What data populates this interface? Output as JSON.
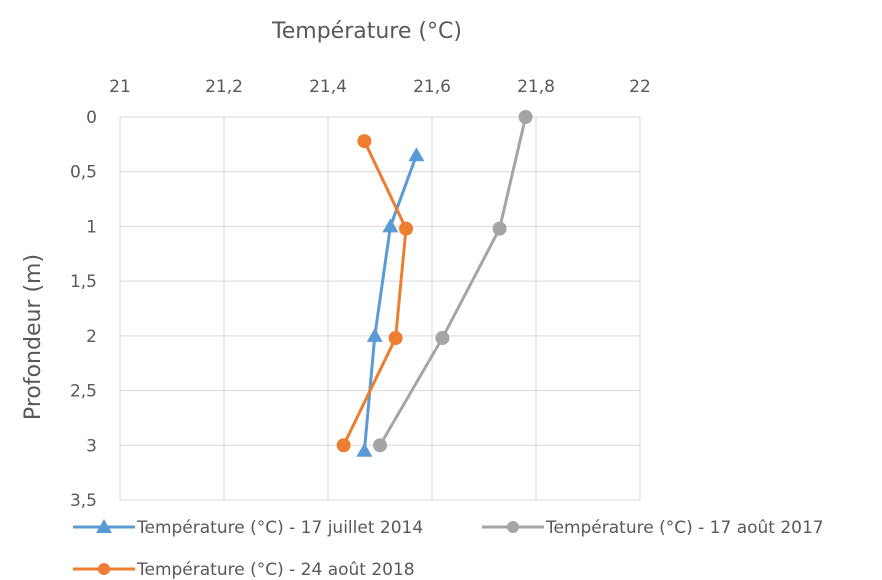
{
  "chart_data": {
    "type": "line",
    "title": "",
    "xlabel": "Température (°C)",
    "ylabel": "Profondeur (m)",
    "xlim": [
      21,
      22
    ],
    "ylim": [
      0,
      3.5
    ],
    "x_axis_position": "top",
    "y_axis_reversed": true,
    "grid": true,
    "x_ticks": [
      "21",
      "21,2",
      "21,4",
      "21,6",
      "21,8",
      "22"
    ],
    "x_tick_values": [
      21,
      21.2,
      21.4,
      21.6,
      21.8,
      22
    ],
    "y_ticks": [
      "0",
      "0,5",
      "1",
      "1,5",
      "2",
      "2,5",
      "3",
      "3,5"
    ],
    "y_tick_values": [
      0,
      0.5,
      1,
      1.5,
      2,
      2.5,
      3,
      3.5
    ],
    "legend_position": "bottom",
    "series": [
      {
        "name": "Température (°C) - 17 juillet 2014",
        "color": "#5B9BD5",
        "marker": "triangle",
        "points": [
          {
            "temp": 21.57,
            "depth": 0.35
          },
          {
            "temp": 21.52,
            "depth": 1.0
          },
          {
            "temp": 21.49,
            "depth": 2.0
          },
          {
            "temp": 21.47,
            "depth": 3.05
          }
        ]
      },
      {
        "name": "Température (°C) - 17 août 2017",
        "color": "#A5A5A5",
        "marker": "circle",
        "points": [
          {
            "temp": 21.78,
            "depth": 0.0
          },
          {
            "temp": 21.73,
            "depth": 1.02
          },
          {
            "temp": 21.62,
            "depth": 2.02
          },
          {
            "temp": 21.5,
            "depth": 3.0
          }
        ]
      },
      {
        "name": "Température (°C) - 24 août 2018",
        "color": "#ED7D31",
        "marker": "circle",
        "points": [
          {
            "temp": 21.47,
            "depth": 0.22
          },
          {
            "temp": 21.55,
            "depth": 1.02
          },
          {
            "temp": 21.53,
            "depth": 2.02
          },
          {
            "temp": 21.43,
            "depth": 3.0
          }
        ]
      }
    ]
  }
}
